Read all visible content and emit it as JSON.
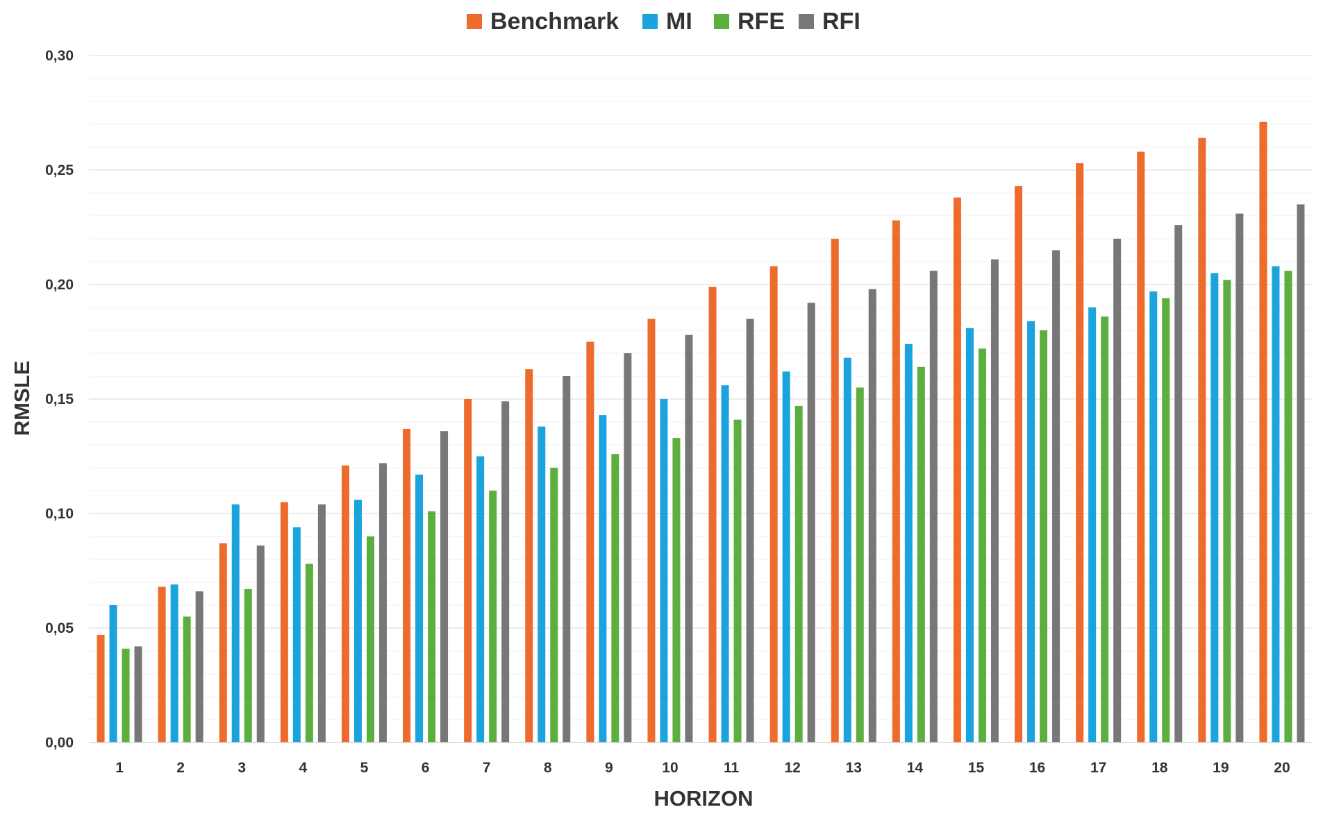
{
  "chart_data": {
    "type": "bar",
    "title": "",
    "xlabel": "HORIZON",
    "ylabel": "RMSLE",
    "ylim": [
      0,
      0.3
    ],
    "yticks": [
      "0,00",
      "0,05",
      "0,10",
      "0,15",
      "0,20",
      "0,25",
      "0,30"
    ],
    "grid": true,
    "legend_position": "top",
    "categories": [
      "1",
      "2",
      "3",
      "4",
      "5",
      "6",
      "7",
      "8",
      "9",
      "10",
      "11",
      "12",
      "13",
      "14",
      "15",
      "16",
      "17",
      "18",
      "19",
      "20"
    ],
    "series": [
      {
        "name": "Benchmark",
        "color": "#ed6b2d",
        "values": [
          0.047,
          0.068,
          0.087,
          0.105,
          0.121,
          0.137,
          0.15,
          0.163,
          0.175,
          0.185,
          0.199,
          0.208,
          0.22,
          0.228,
          0.238,
          0.243,
          0.253,
          0.258,
          0.264,
          0.271
        ]
      },
      {
        "name": "MI",
        "color": "#1aa3dc",
        "values": [
          0.06,
          0.069,
          0.104,
          0.094,
          0.106,
          0.117,
          0.125,
          0.138,
          0.143,
          0.15,
          0.156,
          0.162,
          0.168,
          0.174,
          0.181,
          0.184,
          0.19,
          0.197,
          0.205,
          0.208
        ]
      },
      {
        "name": "RFE",
        "color": "#5cae3f",
        "values": [
          0.041,
          0.055,
          0.067,
          0.078,
          0.09,
          0.101,
          0.11,
          0.12,
          0.126,
          0.133,
          0.141,
          0.147,
          0.155,
          0.164,
          0.172,
          0.18,
          0.186,
          0.194,
          0.202,
          0.206
        ]
      },
      {
        "name": "RFI",
        "color": "#777777",
        "values": [
          0.042,
          0.066,
          0.086,
          0.104,
          0.122,
          0.136,
          0.149,
          0.16,
          0.17,
          0.178,
          0.185,
          0.192,
          0.198,
          0.206,
          0.211,
          0.215,
          0.22,
          0.226,
          0.231,
          0.235
        ]
      }
    ]
  }
}
